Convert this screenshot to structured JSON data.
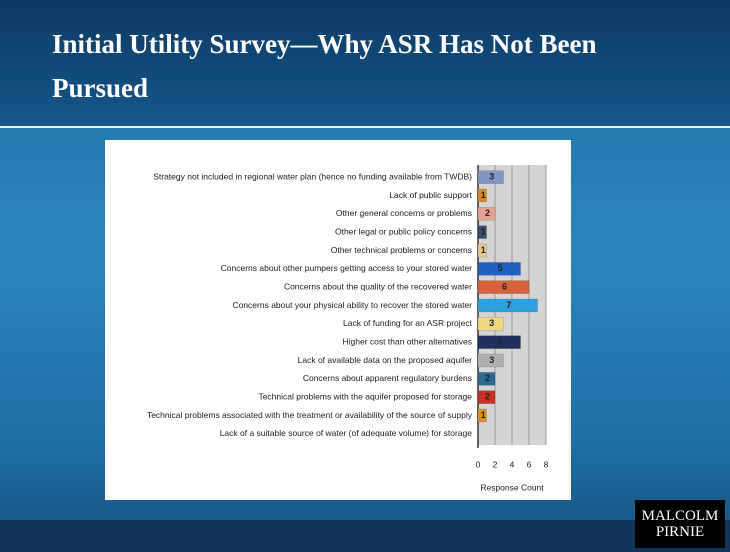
{
  "chart_data": {
    "type": "bar",
    "orientation": "horizontal",
    "title": "Initial Utility Survey—Why ASR Has Not Been Pursued",
    "categories": [
      "Strategy not included in regional water plan (hence no funding available from TWDB)",
      "Lack of public support",
      "Other general concerns or problems",
      "Other legal or public policy concerns",
      "Other technical problems or concerns",
      "Concerns about other pumpers getting access to your stored water",
      "Concerns about the quality of the recovered water",
      "Concerns about your physical ability to recover the stored water",
      "Lack of funding for an ASR project",
      "Higher cost than other alternatives",
      "Lack of available data on the proposed aquifer",
      "Concerns about apparent regulatory burdens",
      "Technical problems with the aquifer proposed for storage",
      "Technical problems associated with the treatment or availability of the source of supply",
      "Lack of a suitable source of water (of adequate volume) for storage"
    ],
    "values": [
      3,
      1,
      2,
      1,
      1,
      5,
      6,
      7,
      3,
      5,
      3,
      2,
      2,
      1,
      0
    ],
    "colors": [
      "#7f96c4",
      "#e08a1e",
      "#e8a090",
      "#3b4a70",
      "#e8c890",
      "#2060c0",
      "#d8603a",
      "#2ea0e0",
      "#f0d880",
      "#1d3060",
      "#b0b0b0",
      "#2a6a90",
      "#c83020",
      "#e09020",
      "#999999"
    ],
    "xlim": [
      0,
      8
    ],
    "xticks": [
      0,
      2,
      4,
      6,
      8
    ],
    "grid": true,
    "xlabel": "Response Count"
  },
  "logo": {
    "lines": [
      "MALCOLM",
      "PIRNIE"
    ]
  }
}
